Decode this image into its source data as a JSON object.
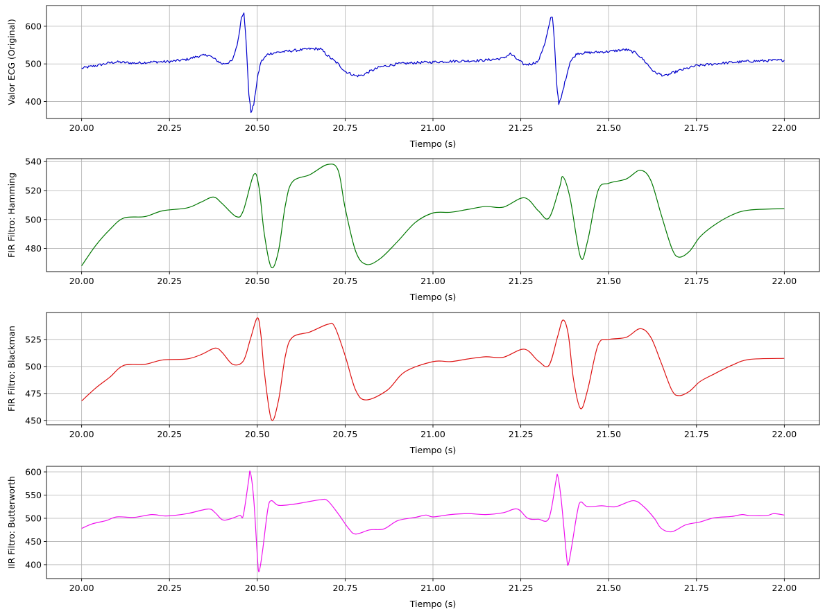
{
  "chart_data": [
    {
      "type": "line",
      "xlabel": "Tiempo (s)",
      "ylabel": "Valor ECG (Original)",
      "xlim": [
        19.9,
        22.1
      ],
      "ylim": [
        355,
        655
      ],
      "xticks": [
        20.0,
        20.25,
        20.5,
        20.75,
        21.0,
        21.25,
        21.5,
        21.75,
        22.0
      ],
      "xtick_labels": [
        "20.00",
        "20.25",
        "20.50",
        "20.75",
        "21.00",
        "21.25",
        "21.50",
        "21.75",
        "22.00"
      ],
      "yticks": [
        400,
        500,
        600
      ],
      "ytick_labels": [
        "400",
        "500",
        "600"
      ],
      "grid": true,
      "color": "#0000cc",
      "noise": 3.5,
      "points": [
        [
          20.0,
          488
        ],
        [
          20.02,
          492
        ],
        [
          20.05,
          497
        ],
        [
          20.08,
          503
        ],
        [
          20.1,
          505
        ],
        [
          20.15,
          502
        ],
        [
          20.2,
          505
        ],
        [
          20.25,
          506
        ],
        [
          20.3,
          512
        ],
        [
          20.33,
          520
        ],
        [
          20.36,
          524
        ],
        [
          20.38,
          512
        ],
        [
          20.4,
          500
        ],
        [
          20.42,
          504
        ],
        [
          20.43,
          510
        ],
        [
          20.445,
          560
        ],
        [
          20.455,
          625
        ],
        [
          20.462,
          638
        ],
        [
          20.468,
          560
        ],
        [
          20.476,
          420
        ],
        [
          20.482,
          372
        ],
        [
          20.49,
          392
        ],
        [
          20.5,
          460
        ],
        [
          20.51,
          505
        ],
        [
          20.53,
          526
        ],
        [
          20.55,
          530
        ],
        [
          20.6,
          535
        ],
        [
          20.65,
          540
        ],
        [
          20.68,
          540
        ],
        [
          20.7,
          522
        ],
        [
          20.73,
          500
        ],
        [
          20.75,
          480
        ],
        [
          20.78,
          468
        ],
        [
          20.8,
          470
        ],
        [
          20.82,
          480
        ],
        [
          20.85,
          492
        ],
        [
          20.9,
          500
        ],
        [
          20.95,
          503
        ],
        [
          21.0,
          505
        ],
        [
          21.05,
          507
        ],
        [
          21.1,
          508
        ],
        [
          21.15,
          510
        ],
        [
          21.2,
          515
        ],
        [
          21.22,
          527
        ],
        [
          21.24,
          512
        ],
        [
          21.26,
          498
        ],
        [
          21.28,
          500
        ],
        [
          21.3,
          507
        ],
        [
          21.32,
          560
        ],
        [
          21.335,
          620
        ],
        [
          21.34,
          625
        ],
        [
          21.345,
          570
        ],
        [
          21.352,
          450
        ],
        [
          21.358,
          392
        ],
        [
          21.365,
          410
        ],
        [
          21.375,
          450
        ],
        [
          21.39,
          505
        ],
        [
          21.41,
          528
        ],
        [
          21.45,
          530
        ],
        [
          21.5,
          533
        ],
        [
          21.55,
          538
        ],
        [
          21.58,
          528
        ],
        [
          21.6,
          510
        ],
        [
          21.63,
          478
        ],
        [
          21.66,
          468
        ],
        [
          21.7,
          482
        ],
        [
          21.75,
          495
        ],
        [
          21.8,
          500
        ],
        [
          21.85,
          504
        ],
        [
          21.9,
          507
        ],
        [
          22.0,
          510
        ]
      ]
    },
    {
      "type": "line",
      "xlabel": "Tiempo (s)",
      "ylabel": "FIR Filtro: Hamming",
      "xlim": [
        19.9,
        22.1
      ],
      "ylim": [
        464,
        542
      ],
      "xticks": [
        20.0,
        20.25,
        20.5,
        20.75,
        21.0,
        21.25,
        21.5,
        21.75,
        22.0
      ],
      "xtick_labels": [
        "20.00",
        "20.25",
        "20.50",
        "20.75",
        "21.00",
        "21.25",
        "21.50",
        "21.75",
        "22.00"
      ],
      "yticks": [
        480,
        500,
        520,
        540
      ],
      "ytick_labels": [
        "480",
        "500",
        "520",
        "540"
      ],
      "grid": true,
      "color": "#007700",
      "noise": 0,
      "points": [
        [
          20.0,
          468
        ],
        [
          20.04,
          482
        ],
        [
          20.08,
          493
        ],
        [
          20.12,
          501
        ],
        [
          20.18,
          502
        ],
        [
          20.23,
          506
        ],
        [
          20.3,
          508
        ],
        [
          20.34,
          512
        ],
        [
          20.375,
          515.5
        ],
        [
          20.4,
          511
        ],
        [
          20.44,
          502
        ],
        [
          20.46,
          506
        ],
        [
          20.49,
          531
        ],
        [
          20.505,
          522
        ],
        [
          20.52,
          490
        ],
        [
          20.54,
          467
        ],
        [
          20.56,
          478
        ],
        [
          20.58,
          510
        ],
        [
          20.6,
          526
        ],
        [
          20.65,
          531
        ],
        [
          20.7,
          538
        ],
        [
          20.73,
          534
        ],
        [
          20.75,
          508
        ],
        [
          20.78,
          478
        ],
        [
          20.81,
          469
        ],
        [
          20.85,
          473
        ],
        [
          20.9,
          485
        ],
        [
          20.95,
          498
        ],
        [
          21.0,
          504.5
        ],
        [
          21.05,
          505
        ],
        [
          21.1,
          507
        ],
        [
          21.15,
          509
        ],
        [
          21.2,
          508.5
        ],
        [
          21.26,
          515
        ],
        [
          21.3,
          506
        ],
        [
          21.33,
          501
        ],
        [
          21.36,
          522
        ],
        [
          21.37,
          529.5
        ],
        [
          21.39,
          515
        ],
        [
          21.42,
          474
        ],
        [
          21.44,
          485
        ],
        [
          21.47,
          520
        ],
        [
          21.5,
          525
        ],
        [
          21.55,
          528
        ],
        [
          21.59,
          534
        ],
        [
          21.62,
          527
        ],
        [
          21.65,
          503
        ],
        [
          21.68,
          480
        ],
        [
          21.7,
          474
        ],
        [
          21.73,
          478
        ],
        [
          21.76,
          488
        ],
        [
          21.8,
          496
        ],
        [
          21.85,
          503
        ],
        [
          21.9,
          506.5
        ],
        [
          22.0,
          507.5
        ]
      ]
    },
    {
      "type": "line",
      "xlabel": "Tiempo (s)",
      "ylabel": "FIR Filtro: Blackman",
      "xlim": [
        19.9,
        22.1
      ],
      "ylim": [
        446,
        550
      ],
      "xticks": [
        20.0,
        20.25,
        20.5,
        20.75,
        21.0,
        21.25,
        21.5,
        21.75,
        22.0
      ],
      "xtick_labels": [
        "20.00",
        "20.25",
        "20.50",
        "20.75",
        "21.00",
        "21.25",
        "21.50",
        "21.75",
        "22.00"
      ],
      "yticks": [
        450,
        475,
        500,
        525
      ],
      "ytick_labels": [
        "450",
        "475",
        "500",
        "525"
      ],
      "grid": true,
      "color": "#dd1111",
      "noise": 0,
      "points": [
        [
          20.0,
          468
        ],
        [
          20.04,
          480
        ],
        [
          20.08,
          490
        ],
        [
          20.12,
          501
        ],
        [
          20.18,
          502
        ],
        [
          20.23,
          506
        ],
        [
          20.3,
          507
        ],
        [
          20.34,
          511
        ],
        [
          20.38,
          517
        ],
        [
          20.4,
          513
        ],
        [
          20.43,
          502
        ],
        [
          20.46,
          505
        ],
        [
          20.48,
          525
        ],
        [
          20.5,
          545
        ],
        [
          20.51,
          530
        ],
        [
          20.52,
          495
        ],
        [
          20.54,
          451
        ],
        [
          20.56,
          468
        ],
        [
          20.58,
          510
        ],
        [
          20.6,
          527
        ],
        [
          20.65,
          532
        ],
        [
          20.7,
          539
        ],
        [
          20.72,
          537
        ],
        [
          20.75,
          510
        ],
        [
          20.78,
          478
        ],
        [
          20.81,
          469
        ],
        [
          20.87,
          478
        ],
        [
          20.92,
          495
        ],
        [
          21.0,
          504.5
        ],
        [
          21.05,
          504.5
        ],
        [
          21.1,
          507
        ],
        [
          21.15,
          509
        ],
        [
          21.2,
          508.5
        ],
        [
          21.26,
          516
        ],
        [
          21.3,
          505
        ],
        [
          21.33,
          501
        ],
        [
          21.355,
          528
        ],
        [
          21.37,
          543
        ],
        [
          21.385,
          530
        ],
        [
          21.4,
          488
        ],
        [
          21.42,
          461
        ],
        [
          21.44,
          478
        ],
        [
          21.47,
          520
        ],
        [
          21.5,
          525
        ],
        [
          21.55,
          527
        ],
        [
          21.59,
          535
        ],
        [
          21.62,
          527
        ],
        [
          21.65,
          503
        ],
        [
          21.68,
          478
        ],
        [
          21.7,
          473
        ],
        [
          21.73,
          477
        ],
        [
          21.76,
          486
        ],
        [
          21.8,
          493
        ],
        [
          21.85,
          501
        ],
        [
          21.9,
          506.5
        ],
        [
          22.0,
          507.5
        ]
      ]
    },
    {
      "type": "line",
      "xlabel": "Tiempo (s)",
      "ylabel": "IIR Filtro: Butterworth",
      "xlim": [
        19.9,
        22.1
      ],
      "ylim": [
        370,
        612
      ],
      "xticks": [
        20.0,
        20.25,
        20.5,
        20.75,
        21.0,
        21.25,
        21.5,
        21.75,
        22.0
      ],
      "xtick_labels": [
        "20.00",
        "20.25",
        "20.50",
        "20.75",
        "21.00",
        "21.25",
        "21.50",
        "21.75",
        "22.00"
      ],
      "yticks": [
        400,
        450,
        500,
        550,
        600
      ],
      "ytick_labels": [
        "400",
        "450",
        "500",
        "550",
        "600"
      ],
      "grid": true,
      "color": "#ee11ee",
      "noise": 0,
      "points": [
        [
          20.0,
          478
        ],
        [
          20.03,
          488
        ],
        [
          20.07,
          495
        ],
        [
          20.1,
          503
        ],
        [
          20.15,
          502
        ],
        [
          20.2,
          508
        ],
        [
          20.24,
          505
        ],
        [
          20.3,
          510
        ],
        [
          20.36,
          520
        ],
        [
          20.38,
          512
        ],
        [
          20.4,
          497
        ],
        [
          20.42,
          498
        ],
        [
          20.45,
          506
        ],
        [
          20.46,
          506
        ],
        [
          20.475,
          580
        ],
        [
          20.48,
          600
        ],
        [
          20.49,
          540
        ],
        [
          20.5,
          420
        ],
        [
          20.505,
          385
        ],
        [
          20.515,
          430
        ],
        [
          20.53,
          520
        ],
        [
          20.54,
          538
        ],
        [
          20.56,
          528
        ],
        [
          20.6,
          530
        ],
        [
          20.64,
          535
        ],
        [
          20.68,
          540
        ],
        [
          20.7,
          538
        ],
        [
          20.73,
          510
        ],
        [
          20.76,
          478
        ],
        [
          20.78,
          466
        ],
        [
          20.82,
          475
        ],
        [
          20.86,
          477
        ],
        [
          20.9,
          495
        ],
        [
          20.95,
          502
        ],
        [
          20.98,
          507
        ],
        [
          21.0,
          503
        ],
        [
          21.05,
          508
        ],
        [
          21.1,
          510
        ],
        [
          21.15,
          508
        ],
        [
          21.2,
          512
        ],
        [
          21.24,
          520
        ],
        [
          21.27,
          500
        ],
        [
          21.3,
          498
        ],
        [
          21.33,
          500
        ],
        [
          21.35,
          580
        ],
        [
          21.355,
          592
        ],
        [
          21.365,
          540
        ],
        [
          21.38,
          420
        ],
        [
          21.385,
          400
        ],
        [
          21.395,
          440
        ],
        [
          21.41,
          510
        ],
        [
          21.42,
          535
        ],
        [
          21.44,
          525
        ],
        [
          21.48,
          527
        ],
        [
          21.52,
          525
        ],
        [
          21.57,
          538
        ],
        [
          21.6,
          525
        ],
        [
          21.63,
          500
        ],
        [
          21.65,
          478
        ],
        [
          21.68,
          471
        ],
        [
          21.72,
          486
        ],
        [
          21.76,
          492
        ],
        [
          21.8,
          501
        ],
        [
          21.85,
          504
        ],
        [
          21.88,
          508
        ],
        [
          21.9,
          506
        ],
        [
          21.95,
          506
        ],
        [
          21.97,
          510
        ],
        [
          22.0,
          507
        ]
      ]
    }
  ]
}
